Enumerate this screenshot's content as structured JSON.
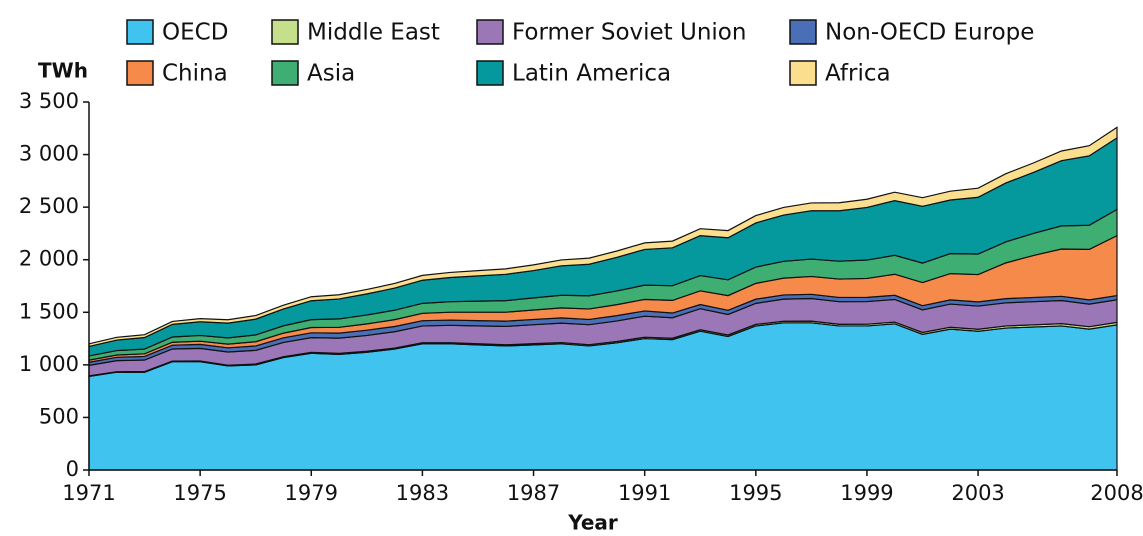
{
  "chart_data": {
    "type": "stacked_area",
    "y_label": "TWh",
    "x_label": "Year",
    "x": [
      1971,
      1972,
      1973,
      1974,
      1975,
      1976,
      1977,
      1978,
      1979,
      1980,
      1981,
      1982,
      1983,
      1984,
      1985,
      1986,
      1987,
      1988,
      1989,
      1990,
      1991,
      1992,
      1993,
      1994,
      1995,
      1996,
      1997,
      1998,
      1999,
      2000,
      2001,
      2002,
      2003,
      2004,
      2005,
      2006,
      2007,
      2008
    ],
    "xlim": [
      1971,
      2008
    ],
    "xticks": [
      1971,
      1975,
      1979,
      1983,
      1987,
      1991,
      1995,
      1999,
      2003,
      2008
    ],
    "ylim": [
      0,
      3500
    ],
    "yticks": [
      0,
      500,
      {
        "value": 1000,
        "label": "1 000"
      },
      {
        "value": 1500,
        "label": "1 500"
      },
      {
        "value": 2000,
        "label": "2 000"
      },
      {
        "value": 2500,
        "label": "2 500"
      },
      {
        "value": 3000,
        "label": "3 000"
      },
      {
        "value": 3500,
        "label": "3 500"
      }
    ],
    "legend": "top",
    "series": [
      {
        "name": "OECD",
        "color": "#41c3f0",
        "values": [
          890,
          930,
          930,
          1030,
          1030,
          990,
          1000,
          1070,
          1110,
          1100,
          1120,
          1150,
          1200,
          1200,
          1190,
          1180,
          1190,
          1200,
          1180,
          1210,
          1250,
          1240,
          1320,
          1270,
          1370,
          1400,
          1400,
          1370,
          1370,
          1390,
          1290,
          1340,
          1320,
          1350,
          1360,
          1370,
          1340,
          1380
        ]
      },
      {
        "name": "Middle East",
        "color": "#c6df8a",
        "values": [
          5,
          5,
          6,
          6,
          7,
          7,
          8,
          8,
          9,
          9,
          10,
          10,
          10,
          11,
          11,
          11,
          12,
          12,
          12,
          13,
          13,
          13,
          14,
          14,
          15,
          15,
          16,
          16,
          17,
          17,
          18,
          18,
          19,
          20,
          21,
          22,
          23,
          24
        ]
      },
      {
        "name": "Former Soviet Union",
        "color": "#9b77b8",
        "values": [
          100,
          105,
          110,
          115,
          120,
          125,
          130,
          135,
          140,
          145,
          150,
          155,
          160,
          165,
          170,
          175,
          180,
          185,
          190,
          195,
          200,
          195,
          200,
          195,
          200,
          210,
          215,
          215,
          215,
          215,
          215,
          220,
          220,
          220,
          220,
          220,
          215,
          215
        ]
      },
      {
        "name": "Non-OECD Europe",
        "color": "#4a6fb6",
        "values": [
          30,
          32,
          34,
          36,
          38,
          40,
          42,
          44,
          46,
          48,
          50,
          50,
          50,
          50,
          50,
          50,
          50,
          50,
          50,
          50,
          50,
          45,
          40,
          40,
          40,
          40,
          40,
          40,
          40,
          40,
          40,
          40,
          40,
          40,
          40,
          40,
          40,
          40
        ]
      },
      {
        "name": "China",
        "color": "#f58a4b",
        "values": [
          20,
          22,
          25,
          28,
          30,
          35,
          40,
          45,
          50,
          55,
          60,
          65,
          70,
          75,
          80,
          85,
          90,
          95,
          100,
          105,
          110,
          120,
          130,
          140,
          150,
          160,
          170,
          175,
          180,
          200,
          220,
          250,
          260,
          340,
          400,
          450,
          480,
          570
        ]
      },
      {
        "name": "Asia",
        "color": "#3fae72",
        "values": [
          40,
          42,
          45,
          50,
          55,
          60,
          65,
          70,
          75,
          80,
          85,
          90,
          95,
          100,
          105,
          110,
          115,
          120,
          125,
          130,
          135,
          140,
          145,
          150,
          155,
          160,
          165,
          170,
          175,
          180,
          185,
          190,
          195,
          200,
          210,
          220,
          230,
          250
        ]
      },
      {
        "name": "Latin America",
        "color": "#05999e",
        "values": [
          90,
          100,
          110,
          120,
          130,
          140,
          150,
          160,
          180,
          190,
          200,
          210,
          220,
          230,
          240,
          250,
          260,
          280,
          300,
          320,
          340,
          360,
          380,
          400,
          420,
          440,
          460,
          480,
          500,
          520,
          540,
          510,
          540,
          560,
          580,
          620,
          660,
          680
        ]
      },
      {
        "name": "Africa",
        "color": "#fbdf8e",
        "values": [
          25,
          26,
          27,
          28,
          30,
          32,
          34,
          36,
          38,
          40,
          42,
          44,
          46,
          48,
          50,
          52,
          54,
          56,
          58,
          60,
          62,
          64,
          66,
          68,
          70,
          72,
          74,
          76,
          78,
          80,
          82,
          84,
          86,
          88,
          90,
          92,
          96,
          100
        ]
      }
    ]
  }
}
